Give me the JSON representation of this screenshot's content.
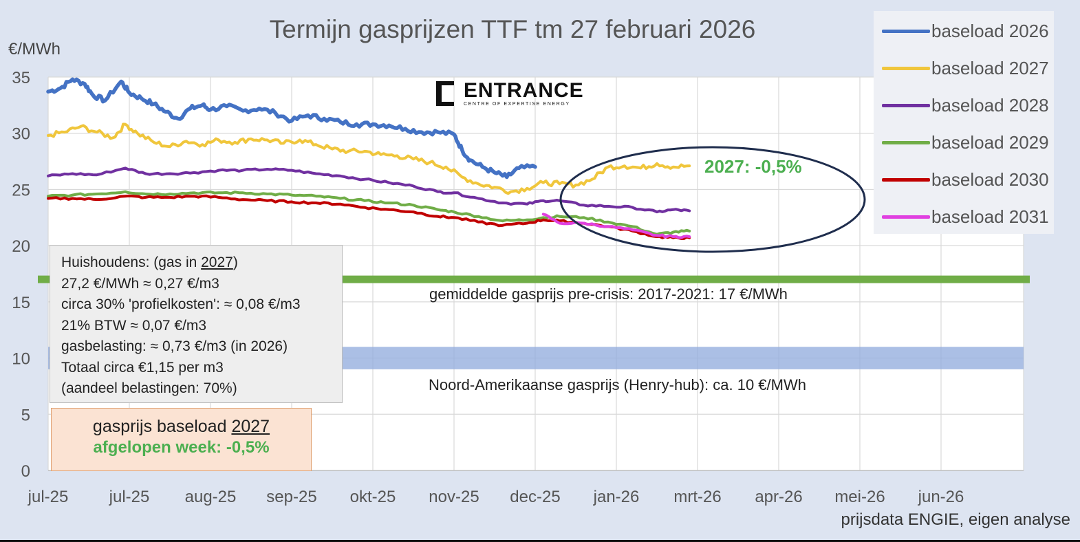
{
  "chart_data": {
    "type": "line",
    "title": "Termijn gasprijzen TTF tm 27 februari 2026",
    "ylabel": "€/MWh",
    "ylim": [
      0,
      35
    ],
    "yticks": [
      0,
      5,
      10,
      15,
      20,
      25,
      30,
      35
    ],
    "xtick_labels": [
      "jul-25",
      "jul-25",
      "aug-25",
      "sep-25",
      "okt-25",
      "nov-25",
      "dec-25",
      "jan-26",
      "mrt-26",
      "apr-26",
      "mei-26",
      "jun-26"
    ],
    "grid": true,
    "legend_position": "top-right",
    "source": "prijsdata ENGIE, eigen analyse",
    "series": [
      {
        "name": "baseload 2026",
        "color": "#4472c4",
        "points": [
          [
            0,
            33.7
          ],
          [
            0.15,
            34.0
          ],
          [
            0.3,
            34.8
          ],
          [
            0.45,
            34.4
          ],
          [
            0.55,
            33.4
          ],
          [
            0.7,
            32.9
          ],
          [
            0.9,
            34.6
          ],
          [
            1.0,
            33.6
          ],
          [
            1.15,
            33.1
          ],
          [
            1.3,
            32.6
          ],
          [
            1.45,
            31.9
          ],
          [
            1.6,
            31.3
          ],
          [
            1.75,
            32.2
          ],
          [
            1.9,
            32.5
          ],
          [
            2.0,
            32.1
          ],
          [
            2.2,
            32.4
          ],
          [
            2.4,
            32.0
          ],
          [
            2.6,
            32.2
          ],
          [
            2.8,
            31.8
          ],
          [
            3.0,
            31.1
          ],
          [
            3.2,
            31.6
          ],
          [
            3.4,
            31.3
          ],
          [
            3.6,
            31.0
          ],
          [
            3.8,
            30.8
          ],
          [
            4.0,
            30.8
          ],
          [
            4.2,
            30.7
          ],
          [
            4.4,
            30.4
          ],
          [
            4.6,
            30.1
          ],
          [
            4.8,
            30.1
          ],
          [
            5.0,
            29.9
          ],
          [
            5.1,
            28.5
          ],
          [
            5.2,
            27.6
          ],
          [
            5.35,
            27.0
          ],
          [
            5.5,
            26.5
          ],
          [
            5.65,
            26.1
          ],
          [
            5.8,
            26.9
          ],
          [
            6.0,
            27.0
          ]
        ]
      },
      {
        "name": "baseload 2027",
        "color": "#f0c63c",
        "points": [
          [
            0,
            29.8
          ],
          [
            0.2,
            30.1
          ],
          [
            0.4,
            30.6
          ],
          [
            0.6,
            30.1
          ],
          [
            0.8,
            29.6
          ],
          [
            0.95,
            30.8
          ],
          [
            1.1,
            30.0
          ],
          [
            1.3,
            29.2
          ],
          [
            1.5,
            28.8
          ],
          [
            1.7,
            29.3
          ],
          [
            1.9,
            29.0
          ],
          [
            2.1,
            29.4
          ],
          [
            2.3,
            29.2
          ],
          [
            2.5,
            29.5
          ],
          [
            2.7,
            29.4
          ],
          [
            2.9,
            29.1
          ],
          [
            3.1,
            29.4
          ],
          [
            3.3,
            29.0
          ],
          [
            3.5,
            28.6
          ],
          [
            3.7,
            28.4
          ],
          [
            3.9,
            28.4
          ],
          [
            4.1,
            28.1
          ],
          [
            4.3,
            28.0
          ],
          [
            4.5,
            27.7
          ],
          [
            4.7,
            27.4
          ],
          [
            4.9,
            27.0
          ],
          [
            5.1,
            26.1
          ],
          [
            5.3,
            25.5
          ],
          [
            5.5,
            25.2
          ],
          [
            5.7,
            24.8
          ],
          [
            5.9,
            25.1
          ],
          [
            6.1,
            25.6
          ],
          [
            6.3,
            25.5
          ],
          [
            6.5,
            25.4
          ],
          [
            6.7,
            25.9
          ],
          [
            6.9,
            27.0
          ],
          [
            7.1,
            27.1
          ],
          [
            7.3,
            26.9
          ],
          [
            7.5,
            27.3
          ],
          [
            7.7,
            27.0
          ],
          [
            7.9,
            27.1
          ]
        ]
      },
      {
        "name": "baseload 2028",
        "color": "#7030a0",
        "points": [
          [
            0,
            26.2
          ],
          [
            0.3,
            26.4
          ],
          [
            0.6,
            26.3
          ],
          [
            0.95,
            26.9
          ],
          [
            1.2,
            26.4
          ],
          [
            1.5,
            26.4
          ],
          [
            1.8,
            26.5
          ],
          [
            2.1,
            26.7
          ],
          [
            2.4,
            26.7
          ],
          [
            2.7,
            26.8
          ],
          [
            3.0,
            26.7
          ],
          [
            3.3,
            26.4
          ],
          [
            3.6,
            26.2
          ],
          [
            3.9,
            25.9
          ],
          [
            4.2,
            25.6
          ],
          [
            4.5,
            25.3
          ],
          [
            4.8,
            24.8
          ],
          [
            5.0,
            24.7
          ],
          [
            5.3,
            24.2
          ],
          [
            5.6,
            23.8
          ],
          [
            5.9,
            23.7
          ],
          [
            6.1,
            24.0
          ],
          [
            6.3,
            24.0
          ],
          [
            6.6,
            23.6
          ],
          [
            6.9,
            23.5
          ],
          [
            7.2,
            23.4
          ],
          [
            7.5,
            23.0
          ],
          [
            7.7,
            23.2
          ],
          [
            7.9,
            23.1
          ]
        ]
      },
      {
        "name": "baseload 2029",
        "color": "#70ad47",
        "points": [
          [
            0,
            24.4
          ],
          [
            0.3,
            24.5
          ],
          [
            0.6,
            24.6
          ],
          [
            0.95,
            24.8
          ],
          [
            1.2,
            24.6
          ],
          [
            1.5,
            24.6
          ],
          [
            1.8,
            24.7
          ],
          [
            2.1,
            24.7
          ],
          [
            2.4,
            24.7
          ],
          [
            2.7,
            24.6
          ],
          [
            3.0,
            24.5
          ],
          [
            3.3,
            24.4
          ],
          [
            3.6,
            24.2
          ],
          [
            3.9,
            24.0
          ],
          [
            4.2,
            23.8
          ],
          [
            4.5,
            23.6
          ],
          [
            4.8,
            23.2
          ],
          [
            5.0,
            23.0
          ],
          [
            5.3,
            22.6
          ],
          [
            5.6,
            22.2
          ],
          [
            5.9,
            22.3
          ],
          [
            6.1,
            22.5
          ],
          [
            6.3,
            22.6
          ],
          [
            6.6,
            22.5
          ],
          [
            6.9,
            22.1
          ],
          [
            7.2,
            21.7
          ],
          [
            7.5,
            21.0
          ],
          [
            7.7,
            21.2
          ],
          [
            7.9,
            21.3
          ]
        ]
      },
      {
        "name": "baseload 2030",
        "color": "#c00000",
        "points": [
          [
            0,
            24.2
          ],
          [
            0.3,
            24.2
          ],
          [
            0.6,
            24.1
          ],
          [
            0.95,
            24.4
          ],
          [
            1.2,
            24.3
          ],
          [
            1.5,
            24.3
          ],
          [
            1.8,
            24.4
          ],
          [
            2.1,
            24.3
          ],
          [
            2.4,
            24.1
          ],
          [
            2.7,
            24.0
          ],
          [
            3.0,
            23.9
          ],
          [
            3.3,
            23.8
          ],
          [
            3.6,
            23.7
          ],
          [
            3.9,
            23.4
          ],
          [
            4.2,
            23.2
          ],
          [
            4.5,
            23.0
          ],
          [
            4.8,
            22.6
          ],
          [
            5.0,
            22.5
          ],
          [
            5.3,
            22.1
          ],
          [
            5.6,
            21.8
          ],
          [
            5.9,
            22.0
          ],
          [
            6.1,
            22.3
          ],
          [
            6.3,
            22.2
          ],
          [
            6.6,
            22.0
          ],
          [
            6.9,
            21.7
          ],
          [
            7.2,
            21.3
          ],
          [
            7.5,
            20.8
          ],
          [
            7.7,
            20.7
          ],
          [
            7.9,
            20.7
          ]
        ]
      },
      {
        "name": "baseload 2031",
        "color": "#e040e0",
        "points": [
          [
            6.1,
            22.8
          ],
          [
            6.3,
            22.0
          ],
          [
            6.6,
            22.0
          ],
          [
            6.9,
            21.7
          ],
          [
            7.2,
            21.4
          ],
          [
            7.5,
            20.9
          ],
          [
            7.7,
            20.8
          ],
          [
            7.9,
            20.8
          ]
        ]
      }
    ],
    "reference_lines": [
      {
        "label": "gemiddelde gasprijs pre-crisis: 2017-2021: 17 €/MWh",
        "value": 17,
        "color": "#70ad47"
      },
      {
        "label": "Noord-Amerikaanse gasprijs (Henry-hub): ca. 10 €/MWh",
        "value": 10,
        "band": [
          9,
          11
        ],
        "color": "#8faadc"
      }
    ],
    "annotation": {
      "text": "2027: -0,5%",
      "color": "#4caf50"
    }
  },
  "logo": {
    "name": "ENTRANCE",
    "sub": "CENTRE OF EXPERTISE ENERGY"
  },
  "info_box": {
    "line1_pre": "Huishoudens: (gas in ",
    "line1_year": "2027",
    "line1_post": ")",
    "line2": "27,2 €/MWh ≈ 0,27 €/m3",
    "line3": "circa 30% 'profielkosten': ≈ 0,08 €/m3",
    "line4": "21% BTW ≈ 0,07 €/m3",
    "line5": "gasbelasting: ≈ 0,73 €/m3  (in 2026)",
    "line6": "Totaal circa €1,15 per m3",
    "line7": "(aandeel belastingen: 70%)"
  },
  "week_box": {
    "title_pre": "gasprijs baseload ",
    "title_year": "2027",
    "change": "afgelopen week:  -0,5%"
  }
}
